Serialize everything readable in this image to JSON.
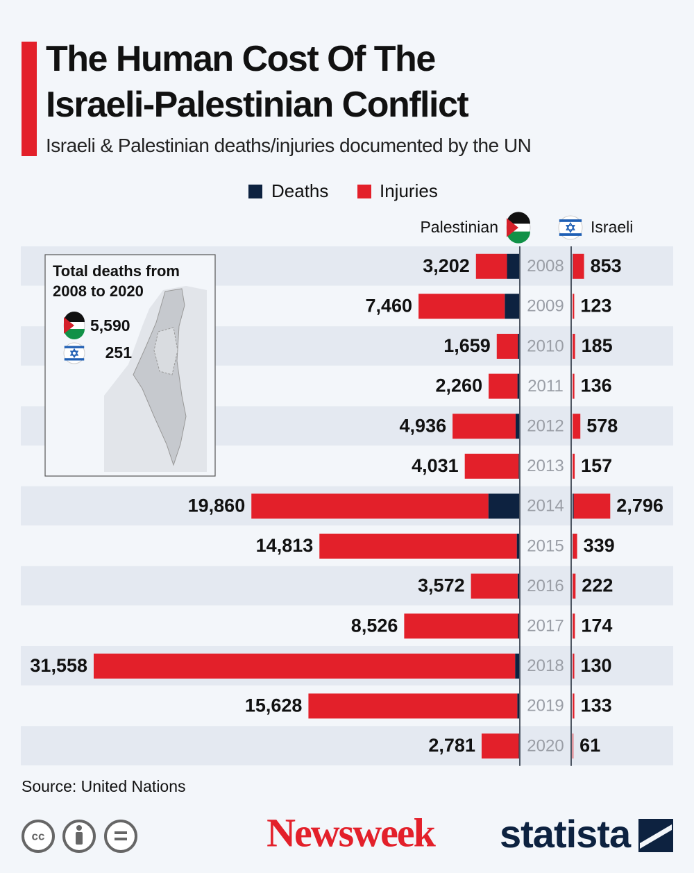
{
  "chart_data": {
    "type": "bar",
    "title": "The Human Cost Of The Israeli-Palestinian Conflict",
    "subtitle": "Israeli & Palestinian deaths/injuries documented by the UN",
    "categories": [
      "2008",
      "2009",
      "2010",
      "2011",
      "2012",
      "2013",
      "2014",
      "2015",
      "2016",
      "2017",
      "2018",
      "2019",
      "2020"
    ],
    "sides": [
      {
        "name": "Palestinian",
        "totals": [
          3202,
          7460,
          1659,
          2260,
          4936,
          4031,
          19860,
          14813,
          3572,
          8526,
          31558,
          15628,
          2781
        ],
        "value_labels": [
          "3,202",
          "7,460",
          "1,659",
          "2,260",
          "4,936",
          "4,031",
          "19,860",
          "14,813",
          "3,572",
          "8,526",
          "31,558",
          "15,628",
          "2,781"
        ],
        "series": [
          {
            "name": "Deaths",
            "color": "#0d2240",
            "values": [
              899,
              1066,
              95,
              124,
              260,
              39,
              2281,
              174,
              109,
              77,
              299,
              137,
              30
            ]
          },
          {
            "name": "Injuries",
            "color": "#e3202a",
            "values": [
              2303,
              6394,
              1564,
              2136,
              4676,
              3992,
              17579,
              14639,
              3463,
              8449,
              31259,
              15491,
              2751
            ]
          }
        ]
      },
      {
        "name": "Israeli",
        "totals": [
          853,
          123,
          185,
          136,
          578,
          157,
          2796,
          339,
          222,
          174,
          130,
          133,
          61
        ],
        "value_labels": [
          "853",
          "123",
          "185",
          "136",
          "578",
          "157",
          "2,796",
          "339",
          "222",
          "174",
          "130",
          "133",
          "61"
        ],
        "series": [
          {
            "name": "Deaths",
            "color": "#0d2240",
            "values": [
              35,
              9,
              9,
              11,
              7,
              6,
              88,
              28,
              15,
              15,
              14,
              10,
              4
            ]
          },
          {
            "name": "Injuries",
            "color": "#e3202a",
            "values": [
              818,
              114,
              176,
              125,
              571,
              151,
              2708,
              311,
              207,
              159,
              116,
              123,
              57
            ]
          }
        ]
      }
    ],
    "inset": {
      "title": "Total deaths from 2008 to 2020",
      "totals": [
        {
          "value": 5590,
          "label": "5,590"
        },
        251
      ]
    },
    "source": "Source: United Nations",
    "license": "cc",
    "brands": [
      "Newsweek",
      "statista"
    ]
  }
}
